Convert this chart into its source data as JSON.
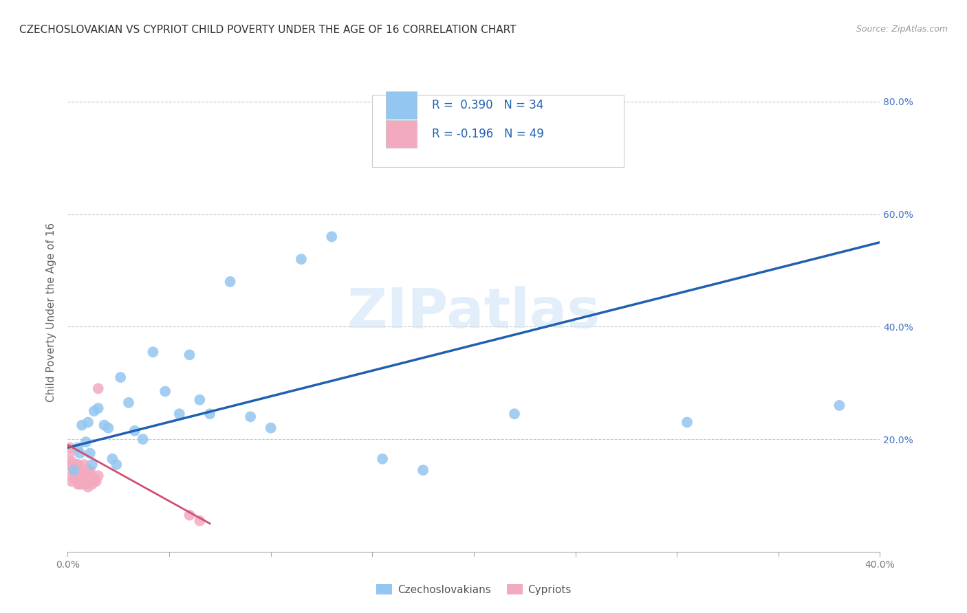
{
  "title": "CZECHOSLOVAKIAN VS CYPRIOT CHILD POVERTY UNDER THE AGE OF 16 CORRELATION CHART",
  "source": "Source: ZipAtlas.com",
  "ylabel": "Child Poverty Under the Age of 16",
  "xlim": [
    0.0,
    0.4
  ],
  "ylim": [
    0.0,
    0.85
  ],
  "xticks": [
    0.0,
    0.05,
    0.1,
    0.15,
    0.2,
    0.25,
    0.3,
    0.35,
    0.4
  ],
  "xtick_labels_show": [
    "0.0%",
    "",
    "",
    "",
    "",
    "",
    "",
    "",
    "40.0%"
  ],
  "yticks_right": [
    0.2,
    0.4,
    0.6,
    0.8
  ],
  "ytick_labels_right": [
    "20.0%",
    "40.0%",
    "60.0%",
    "80.0%"
  ],
  "grid_color": "#c8c8c8",
  "watermark": "ZIPatlas",
  "blue_color": "#93C6F0",
  "pink_color": "#F4AABE",
  "blue_line_color": "#2060B0",
  "pink_line_color": "#D05070",
  "legend_blue_R": "0.390",
  "legend_blue_N": "34",
  "legend_pink_R": "-0.196",
  "legend_pink_N": "49",
  "czechoslovakian_label": "Czechoslovakians",
  "cypriot_label": "Cypriots",
  "blue_x": [
    0.003,
    0.005,
    0.006,
    0.007,
    0.009,
    0.01,
    0.011,
    0.012,
    0.013,
    0.015,
    0.018,
    0.02,
    0.022,
    0.024,
    0.026,
    0.03,
    0.033,
    0.037,
    0.042,
    0.048,
    0.055,
    0.06,
    0.065,
    0.07,
    0.08,
    0.09,
    0.1,
    0.115,
    0.13,
    0.155,
    0.175,
    0.22,
    0.305,
    0.38
  ],
  "blue_y": [
    0.145,
    0.185,
    0.175,
    0.225,
    0.195,
    0.23,
    0.175,
    0.155,
    0.25,
    0.255,
    0.225,
    0.22,
    0.165,
    0.155,
    0.31,
    0.265,
    0.215,
    0.2,
    0.355,
    0.285,
    0.245,
    0.35,
    0.27,
    0.245,
    0.48,
    0.24,
    0.22,
    0.52,
    0.56,
    0.165,
    0.145,
    0.245,
    0.23,
    0.26
  ],
  "pink_x": [
    0.001,
    0.001,
    0.001,
    0.002,
    0.002,
    0.002,
    0.002,
    0.003,
    0.003,
    0.003,
    0.003,
    0.004,
    0.004,
    0.004,
    0.004,
    0.004,
    0.005,
    0.005,
    0.005,
    0.005,
    0.005,
    0.006,
    0.006,
    0.006,
    0.006,
    0.007,
    0.007,
    0.007,
    0.007,
    0.008,
    0.008,
    0.008,
    0.009,
    0.009,
    0.009,
    0.01,
    0.01,
    0.01,
    0.011,
    0.011,
    0.012,
    0.012,
    0.013,
    0.013,
    0.014,
    0.015,
    0.015,
    0.06,
    0.065
  ],
  "pink_y": [
    0.175,
    0.185,
    0.155,
    0.16,
    0.15,
    0.135,
    0.125,
    0.145,
    0.155,
    0.145,
    0.13,
    0.145,
    0.14,
    0.155,
    0.14,
    0.135,
    0.155,
    0.145,
    0.14,
    0.13,
    0.12,
    0.14,
    0.145,
    0.13,
    0.12,
    0.145,
    0.135,
    0.13,
    0.12,
    0.155,
    0.145,
    0.14,
    0.14,
    0.12,
    0.125,
    0.145,
    0.13,
    0.115,
    0.145,
    0.135,
    0.13,
    0.12,
    0.13,
    0.125,
    0.125,
    0.29,
    0.135,
    0.065,
    0.055
  ],
  "blue_trend_x": [
    0.0,
    0.4
  ],
  "blue_trend_y": [
    0.185,
    0.55
  ],
  "pink_trend_x": [
    0.0,
    0.07
  ],
  "pink_trend_y": [
    0.19,
    0.05
  ],
  "background_color": "#ffffff",
  "right_tick_color": "#4472C4",
  "title_fontsize": 11,
  "axis_label_fontsize": 11,
  "tick_fontsize": 10
}
